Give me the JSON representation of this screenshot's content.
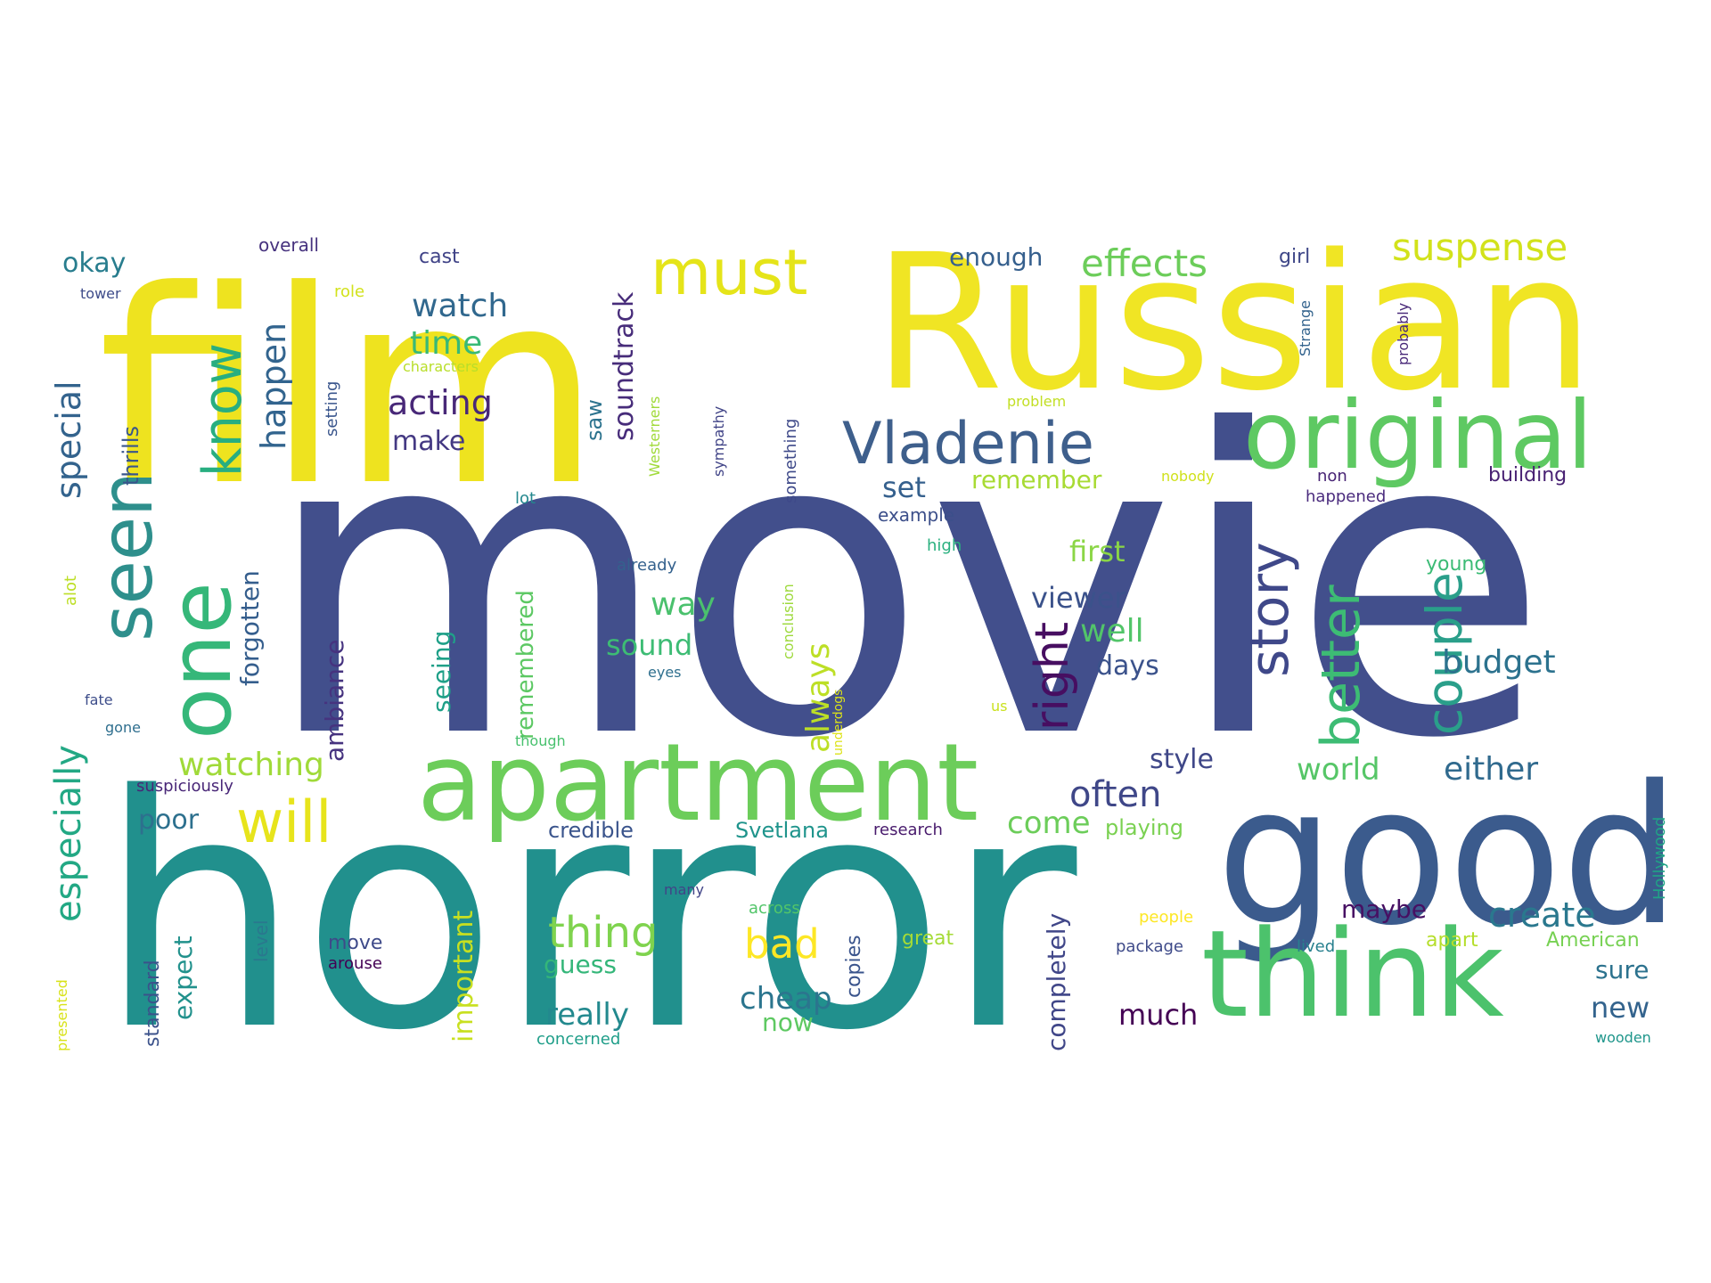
{
  "word_cloud": {
    "words": [
      {
        "text": "movie",
        "color": "#424f8c"
      },
      {
        "text": "horror",
        "color": "#21908d"
      },
      {
        "text": "film",
        "color": "#eee31f"
      },
      {
        "text": "Russian",
        "color": "#f0e524"
      },
      {
        "text": "good",
        "color": "#3b5b8d"
      },
      {
        "text": "think",
        "color": "#4cc26c"
      },
      {
        "text": "apartment",
        "color": "#6ccd5a"
      },
      {
        "text": "original",
        "color": "#5ec962"
      },
      {
        "text": "one",
        "color": "#35b779"
      },
      {
        "text": "seen",
        "color": "#2e8f8c"
      },
      {
        "text": "must",
        "color": "#e5e419"
      },
      {
        "text": "Vladenie",
        "color": "#3e5f8c"
      },
      {
        "text": "know",
        "color": "#28ae80"
      },
      {
        "text": "will",
        "color": "#e7e41c"
      },
      {
        "text": "story",
        "color": "#3f4889"
      },
      {
        "text": "better",
        "color": "#3dbc74"
      },
      {
        "text": "couple",
        "color": "#2a9f8a"
      },
      {
        "text": "right",
        "color": "#470e61"
      },
      {
        "text": "effects",
        "color": "#6ccd5a"
      },
      {
        "text": "suspense",
        "color": "#d2e21b"
      },
      {
        "text": "special",
        "color": "#33638d"
      },
      {
        "text": "especially",
        "color": "#22a884"
      },
      {
        "text": "happen",
        "color": "#32648e"
      },
      {
        "text": "watch",
        "color": "#31688e"
      },
      {
        "text": "time",
        "color": "#38b977"
      },
      {
        "text": "acting",
        "color": "#482878"
      },
      {
        "text": "make",
        "color": "#443983"
      },
      {
        "text": "watching",
        "color": "#a0da39"
      },
      {
        "text": "budget",
        "color": "#2c728e"
      },
      {
        "text": "either",
        "color": "#306a8e"
      },
      {
        "text": "create",
        "color": "#2a788e"
      },
      {
        "text": "often",
        "color": "#3f4788"
      },
      {
        "text": "thing",
        "color": "#7fd34e"
      },
      {
        "text": "bad",
        "color": "#fde725"
      },
      {
        "text": "viewer",
        "color": "#3b528b"
      },
      {
        "text": "world",
        "color": "#56c667"
      },
      {
        "text": "style",
        "color": "#3f4788"
      },
      {
        "text": "always",
        "color": "#bddf26"
      },
      {
        "text": "way",
        "color": "#4ac16d"
      },
      {
        "text": "sound",
        "color": "#3dbc74"
      },
      {
        "text": "well",
        "color": "#52c569"
      },
      {
        "text": "days",
        "color": "#3b528b"
      },
      {
        "text": "first",
        "color": "#8bd646"
      },
      {
        "text": "set",
        "color": "#35608d"
      },
      {
        "text": "remember",
        "color": "#a8db34"
      },
      {
        "text": "soundtrack",
        "color": "#472c7a"
      },
      {
        "text": "okay",
        "color": "#287d8e"
      },
      {
        "text": "enough",
        "color": "#355f8d"
      },
      {
        "text": "cast",
        "color": "#404387"
      },
      {
        "text": "overall",
        "color": "#46327e"
      },
      {
        "text": "thrills",
        "color": "#39568c"
      },
      {
        "text": "forgotten",
        "color": "#355e8d"
      },
      {
        "text": "ambiance",
        "color": "#46337f"
      },
      {
        "text": "seeing",
        "color": "#1fa088"
      },
      {
        "text": "remembered",
        "color": "#5cc863"
      },
      {
        "text": "poor",
        "color": "#2d708e"
      },
      {
        "text": "expect",
        "color": "#21918c"
      },
      {
        "text": "important",
        "color": "#c8e020"
      },
      {
        "text": "guess",
        "color": "#34b679"
      },
      {
        "text": "really",
        "color": "#23898e"
      },
      {
        "text": "cheap",
        "color": "#2b758e"
      },
      {
        "text": "now",
        "color": "#5ec962"
      },
      {
        "text": "come",
        "color": "#6ccd5a"
      },
      {
        "text": "completely",
        "color": "#404688"
      },
      {
        "text": "much",
        "color": "#440154"
      },
      {
        "text": "new",
        "color": "#33638d"
      },
      {
        "text": "sure",
        "color": "#2c728e"
      },
      {
        "text": "maybe",
        "color": "#471063"
      },
      {
        "text": "saw",
        "color": "#2c738e"
      },
      {
        "text": "credible",
        "color": "#3a548c"
      },
      {
        "text": "Svetlana",
        "color": "#1f948c"
      },
      {
        "text": "research",
        "color": "#481a6c"
      },
      {
        "text": "playing",
        "color": "#7ad151"
      },
      {
        "text": "Hollywood",
        "color": "#20a386"
      },
      {
        "text": "American",
        "color": "#77d153"
      },
      {
        "text": "apart",
        "color": "#b5de2b"
      },
      {
        "text": "lived",
        "color": "#27808e"
      },
      {
        "text": "package",
        "color": "#3e4a89"
      },
      {
        "text": "people",
        "color": "#fde725"
      },
      {
        "text": "great",
        "color": "#a5db36"
      },
      {
        "text": "copies",
        "color": "#3a548c"
      },
      {
        "text": "across",
        "color": "#52c569"
      },
      {
        "text": "many",
        "color": "#414487"
      },
      {
        "text": "move",
        "color": "#3e4a89"
      },
      {
        "text": "arouse",
        "color": "#440154"
      },
      {
        "text": "level",
        "color": "#2a788e"
      },
      {
        "text": "standard",
        "color": "#3b528b"
      },
      {
        "text": "presented",
        "color": "#d8e219"
      },
      {
        "text": "suspiciously",
        "color": "#482677"
      },
      {
        "text": "gone",
        "color": "#2e6e8e"
      },
      {
        "text": "fate",
        "color": "#3d4d8a"
      },
      {
        "text": "alot",
        "color": "#bddf26"
      },
      {
        "text": "tower",
        "color": "#3e4c8a"
      },
      {
        "text": "role",
        "color": "#d2e21b"
      },
      {
        "text": "setting",
        "color": "#39558c"
      },
      {
        "text": "characters",
        "color": "#b8de29"
      },
      {
        "text": "Westerners",
        "color": "#a0da39"
      },
      {
        "text": "sympathy",
        "color": "#414487"
      },
      {
        "text": "something",
        "color": "#3e4989"
      },
      {
        "text": "conclusion",
        "color": "#9dd93b"
      },
      {
        "text": "underdogs",
        "color": "#dde318"
      },
      {
        "text": "problem",
        "color": "#c2df23"
      },
      {
        "text": "lot",
        "color": "#23888e"
      },
      {
        "text": "nobody",
        "color": "#d0e11c"
      },
      {
        "text": "example",
        "color": "#3c4f8a"
      },
      {
        "text": "high",
        "color": "#2ab07f"
      },
      {
        "text": "already",
        "color": "#34618d"
      },
      {
        "text": "eyes",
        "color": "#2e6f8e"
      },
      {
        "text": "though",
        "color": "#48c16e"
      },
      {
        "text": "us",
        "color": "#cae11f"
      },
      {
        "text": "non",
        "color": "#482475"
      },
      {
        "text": "happened",
        "color": "#4b2c7e"
      },
      {
        "text": "building",
        "color": "#482173"
      },
      {
        "text": "young",
        "color": "#3bbb75"
      },
      {
        "text": "Strange",
        "color": "#33638d"
      },
      {
        "text": "probably",
        "color": "#482878"
      },
      {
        "text": "girl",
        "color": "#3f4788"
      },
      {
        "text": "concerned",
        "color": "#1f9e89"
      },
      {
        "text": "wooden",
        "color": "#1f968b"
      }
    ]
  }
}
